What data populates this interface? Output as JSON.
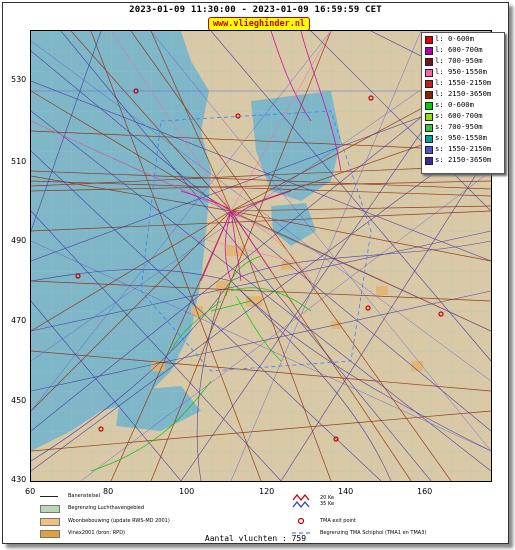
{
  "header": {
    "title": "2023-01-09 11:30:00 - 2023-01-09 16:59:59 CET",
    "url": "www.vlieghinder.nl"
  },
  "map": {
    "y_labels": [
      "530",
      "510",
      "490",
      "470",
      "450",
      "430"
    ],
    "x_labels": [
      "60",
      "80",
      "100",
      "120",
      "140",
      "160"
    ],
    "colors": {
      "sea": "#7fb7c8",
      "land": "#d9c9a6"
    }
  },
  "legend": {
    "items": [
      {
        "label": "l: 0-600m",
        "color": "#e00000"
      },
      {
        "label": "l: 600-700m",
        "color": "#b000b0"
      },
      {
        "label": "l: 700-950m",
        "color": "#6a1a1a"
      },
      {
        "label": "l: 950-1550m",
        "color": "#ff66a0"
      },
      {
        "label": "l: 1550-2150m",
        "color": "#c02020"
      },
      {
        "label": "l: 2150-3650m",
        "color": "#8b2500"
      },
      {
        "label": "s: 0-600m",
        "color": "#00d000"
      },
      {
        "label": "s: 600-700m",
        "color": "#90e000"
      },
      {
        "label": "s: 700-950m",
        "color": "#40c040"
      },
      {
        "label": "s: 950-1550m",
        "color": "#00a0a0"
      },
      {
        "label": "s: 1550-2150m",
        "color": "#5050d0"
      },
      {
        "label": "s: 2150-3650m",
        "color": "#3a2a9a"
      }
    ]
  },
  "bottom_legend": {
    "banenstelsel": "Banenstelsel",
    "luchthaven": "Begrenzing Luchthavengebied",
    "woonbebouwing": "Woonbebouwing (update RWS-MD 2001)",
    "vinex": "Vinex2001 (bron: RPD)",
    "ke20": "20 Ke",
    "ke35": "35 Ke",
    "tma_exit": "TMA exit point",
    "tma_border": "Begrenzing TMA Schiphol  (TMA1 en TMA3)"
  },
  "footer": {
    "count": "Aantal vluchten : 759"
  }
}
